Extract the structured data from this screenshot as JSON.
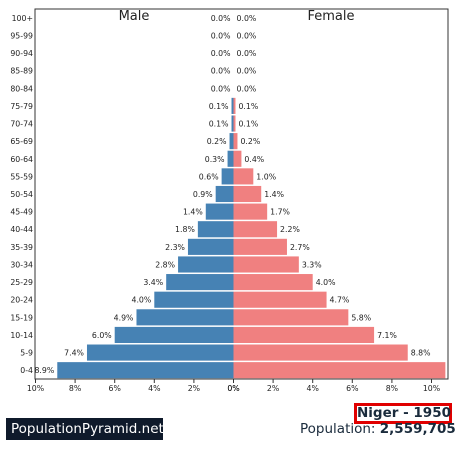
{
  "chart_data": {
    "type": "bar",
    "orientation": "horizontal-population-pyramid",
    "title_left": "Male",
    "title_right": "Female",
    "age_groups": [
      "0-4",
      "5-9",
      "10-14",
      "15-19",
      "20-24",
      "25-29",
      "30-34",
      "35-39",
      "40-44",
      "45-49",
      "50-54",
      "55-59",
      "60-64",
      "65-69",
      "70-74",
      "75-79",
      "80-84",
      "85-89",
      "90-94",
      "95-99",
      "100+"
    ],
    "series": [
      {
        "name": "Male",
        "color": "#4682b4",
        "values": [
          8.9,
          7.4,
          6.0,
          4.9,
          4.0,
          3.4,
          2.8,
          2.3,
          1.8,
          1.4,
          0.9,
          0.6,
          0.3,
          0.2,
          0.1,
          0.1,
          0.0,
          0.0,
          0.0,
          0.0,
          0.0
        ],
        "labels": [
          "8.9%",
          "7.4%",
          "6.0%",
          "4.9%",
          "4.0%",
          "3.4%",
          "2.8%",
          "2.3%",
          "1.8%",
          "1.4%",
          "0.9%",
          "0.6%",
          "0.3%",
          "0.2%",
          "0.1%",
          "0.1%",
          "0.0%",
          "0.0%",
          "0.0%",
          "0.0%",
          "0.0%"
        ]
      },
      {
        "name": "Female",
        "color": "#f08080",
        "values": [
          10.7,
          8.8,
          7.1,
          5.8,
          4.7,
          4.0,
          3.3,
          2.7,
          2.2,
          1.7,
          1.4,
          1.0,
          0.4,
          0.2,
          0.1,
          0.1,
          0.0,
          0.0,
          0.0,
          0.0,
          0.0
        ],
        "labels": [
          "",
          "8.8%",
          "7.1%",
          "5.8%",
          "4.7%",
          "4.0%",
          "3.3%",
          "2.7%",
          "2.2%",
          "1.7%",
          "1.4%",
          "1.0%",
          "0.4%",
          "0.2%",
          "0.1%",
          "0.1%",
          "0.0%",
          "0.0%",
          "0.0%",
          "0.0%",
          "0.0%"
        ]
      }
    ],
    "x_ticks_left": [
      "10%",
      "8%",
      "6%",
      "4%",
      "2%",
      "0%"
    ],
    "x_ticks_right": [
      "0%",
      "2%",
      "4%",
      "6%",
      "8%",
      "10%"
    ],
    "x_range": [
      0,
      10
    ],
    "grid": false
  },
  "brand": "PopulationPyramid.net",
  "country_year": "Niger - 1950",
  "population_label": "Population:",
  "population_value": "2,559,705"
}
